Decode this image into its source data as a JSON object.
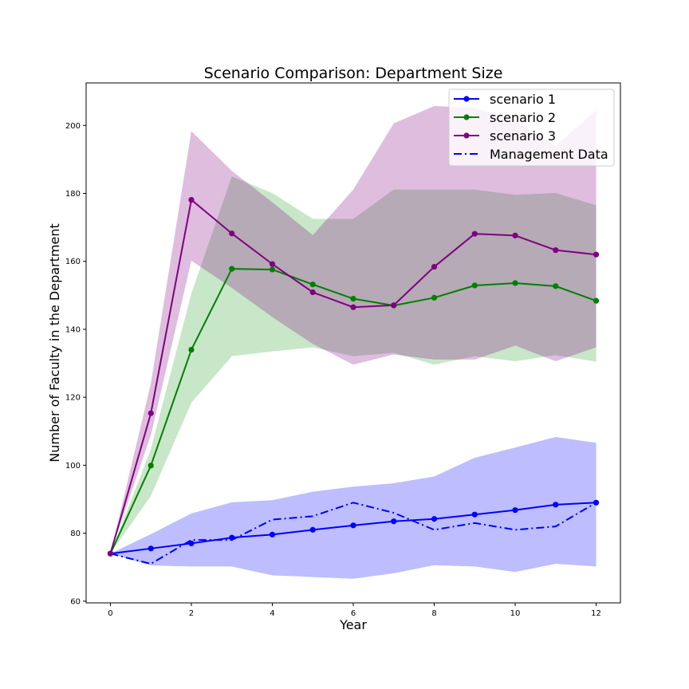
{
  "chart_data": {
    "type": "line",
    "title": "Scenario Comparison: Department Size",
    "xlabel": "Year",
    "ylabel": "Number of Faculty in the Department",
    "xlim": [
      -0.6,
      12.6
    ],
    "ylim": [
      59.5,
      212.5
    ],
    "xticks": [
      0,
      2,
      4,
      6,
      8,
      10,
      12
    ],
    "yticks": [
      60,
      80,
      100,
      120,
      140,
      160,
      180,
      200
    ],
    "grid": false,
    "legend_position": "top-right",
    "x": [
      0,
      1,
      2,
      3,
      4,
      5,
      6,
      7,
      8,
      9,
      10,
      11,
      12
    ],
    "series": [
      {
        "name": "scenario 1",
        "color": "#0000ff",
        "band_color": "#0000ff",
        "style": "solid-marker",
        "values": [
          74,
          75.5,
          77,
          78.7,
          79.6,
          81,
          82.3,
          83.5,
          84.2,
          85.5,
          86.8,
          88.4,
          89
        ],
        "lower": [
          74,
          70.5,
          70.2,
          70.2,
          67.6,
          67.1,
          66.6,
          68.2,
          70.6,
          70.2,
          68.6,
          71,
          70.2
        ],
        "upper": [
          74,
          79.7,
          85.8,
          89.1,
          89.7,
          92.2,
          93.7,
          94.7,
          96.7,
          102.2,
          105.2,
          108.3,
          106.6
        ]
      },
      {
        "name": "scenario 2",
        "color": "#008000",
        "band_color": "#2ca02c",
        "style": "solid-marker",
        "values": [
          74,
          99.9,
          134,
          157.8,
          157.6,
          153.2,
          149,
          147,
          149.3,
          152.9,
          153.6,
          152.7,
          148.4
        ],
        "lower": [
          74,
          91,
          118.4,
          132.1,
          133.5,
          134.7,
          132.1,
          133.1,
          129.6,
          132.1,
          130.6,
          132.4,
          130.5
        ],
        "upper": [
          74,
          104.8,
          150.5,
          185,
          180.1,
          172.5,
          172.5,
          181.1,
          181.1,
          181.1,
          179.6,
          180.1,
          176.5
        ]
      },
      {
        "name": "scenario 3",
        "color": "#800080",
        "band_color": "#800080",
        "style": "solid-marker",
        "values": [
          74,
          115.3,
          178.1,
          168.2,
          159.2,
          150.9,
          146.5,
          147.1,
          158.4,
          168.1,
          167.6,
          163.3,
          162
        ],
        "lower": [
          74,
          108.9,
          160.2,
          152.2,
          143.6,
          135.7,
          129.6,
          132.6,
          131.1,
          131.1,
          135.2,
          130.6,
          134.7
        ],
        "upper": [
          74,
          124.1,
          198.3,
          186.6,
          177.4,
          167.7,
          181.1,
          200.6,
          205.7,
          205.2,
          201.1,
          194,
          204.5
        ]
      },
      {
        "name": "Management Data",
        "color": "#0000ff",
        "style": "dashdot",
        "values": [
          74,
          71,
          78,
          78,
          84,
          85,
          89,
          86,
          81,
          83,
          81,
          82,
          89
        ]
      }
    ]
  }
}
